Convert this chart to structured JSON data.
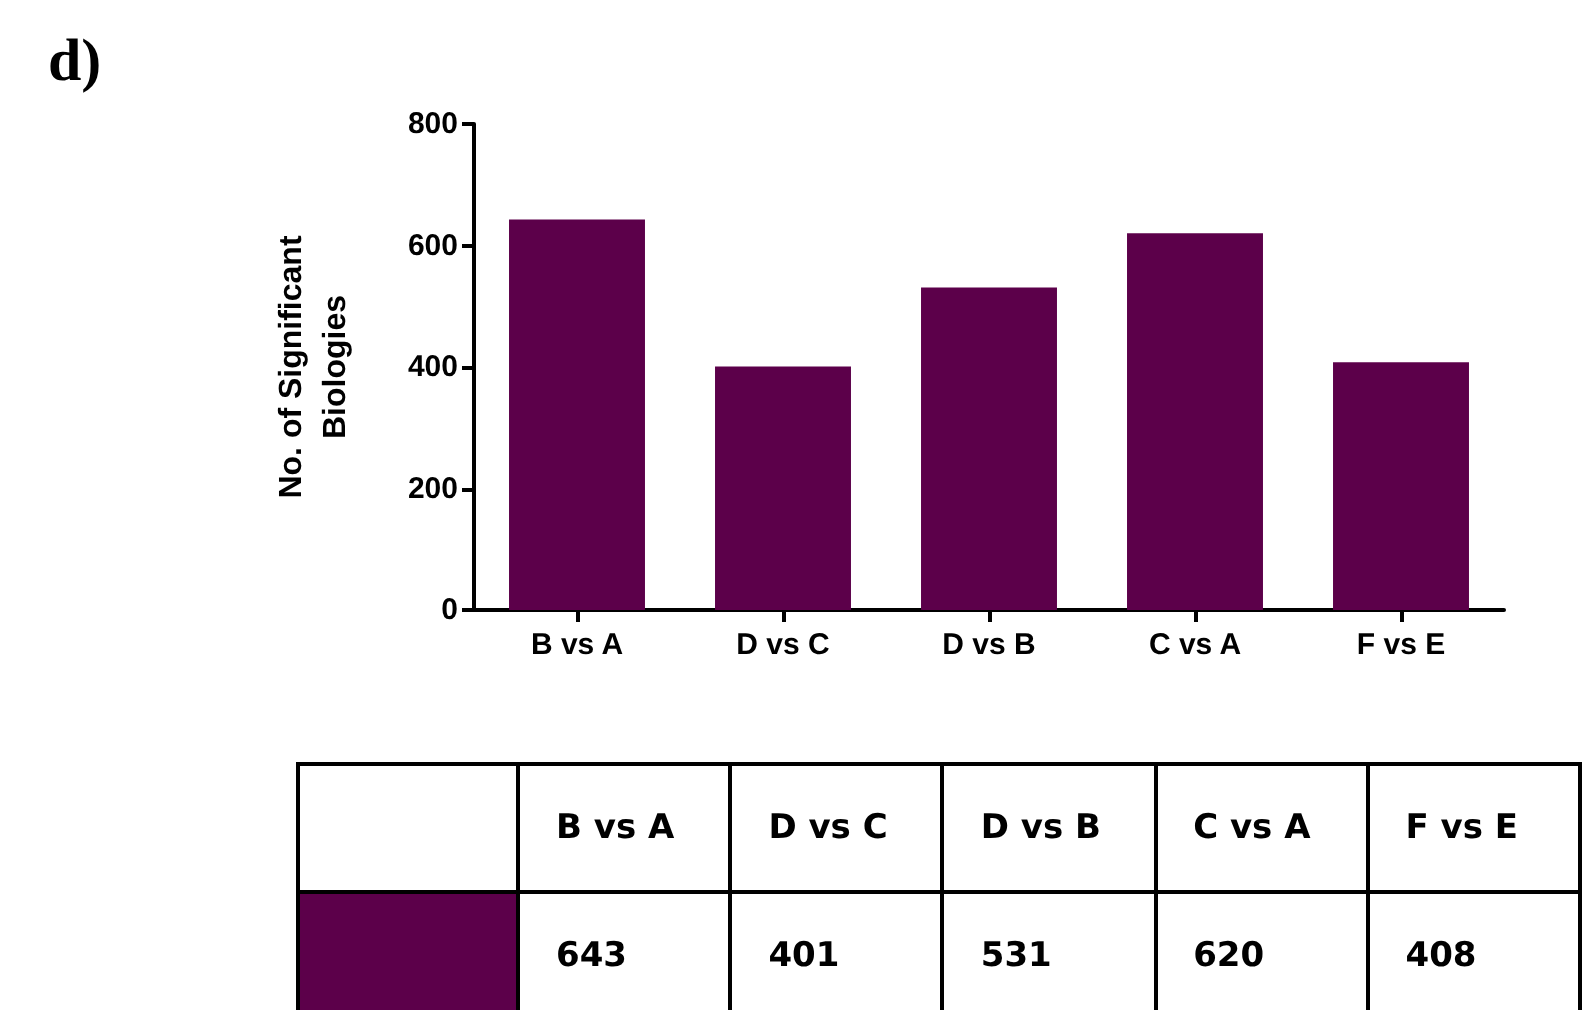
{
  "chart_data": {
    "type": "bar",
    "ylabel": "No. of Significant\nBiologies",
    "categories": [
      "B vs A",
      "D vs C",
      "D vs B",
      "C vs A",
      "F vs E"
    ],
    "values": [
      643,
      401,
      531,
      620,
      408
    ],
    "color": "#5c004a",
    "ylim": [
      0,
      800
    ],
    "yticks": [
      0,
      200,
      400,
      600,
      800
    ],
    "grid": false,
    "data_labels": true,
    "annotations": [
      "d)"
    ]
  }
}
